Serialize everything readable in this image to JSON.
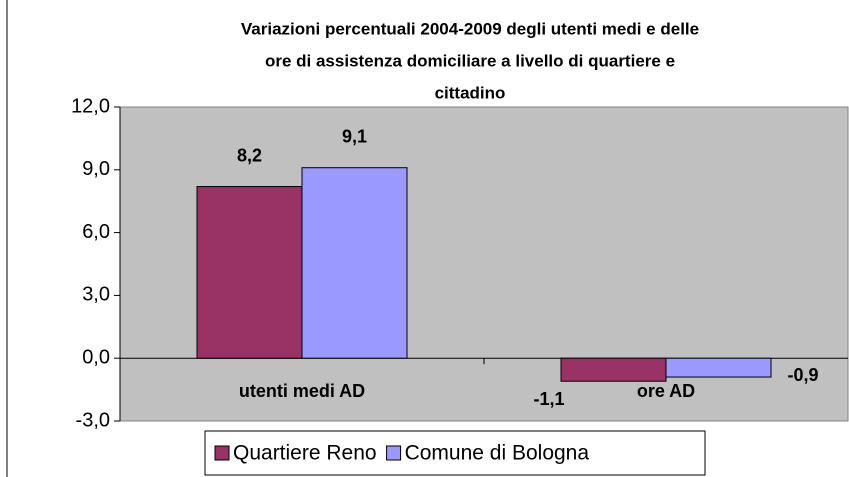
{
  "chart_data": {
    "type": "bar",
    "title": [
      "Variazioni percentuali 2004-2009 degli utenti medi e delle",
      "ore di assistenza domiciliare a livello di quartiere e",
      "cittadino"
    ],
    "categories": [
      "utenti medi AD",
      "ore AD"
    ],
    "series": [
      {
        "name": "Quartiere Reno",
        "color": "#993366",
        "values": [
          8.2,
          -1.1
        ],
        "value_labels": [
          "8,2",
          "-1,1"
        ]
      },
      {
        "name": "Comune di Bologna",
        "color": "#9999ff",
        "values": [
          9.1,
          -0.9
        ],
        "value_labels": [
          "9,1",
          "-0,9"
        ]
      }
    ],
    "ylim": [
      -3,
      12
    ],
    "yticks": [
      {
        "value": -3,
        "label": "-3,0"
      },
      {
        "value": 0,
        "label": "0,0"
      },
      {
        "value": 3,
        "label": "3,0"
      },
      {
        "value": 6,
        "label": "6,0"
      },
      {
        "value": 9,
        "label": "9,0"
      },
      {
        "value": 12,
        "label": "12,0"
      }
    ],
    "plot_background": "#c0c0c0"
  }
}
